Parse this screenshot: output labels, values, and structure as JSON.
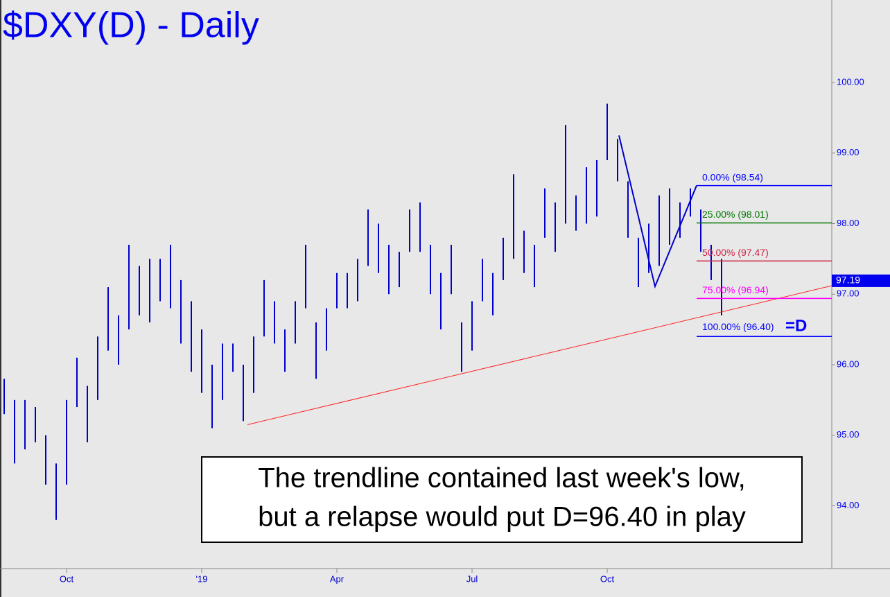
{
  "chart_data": {
    "type": "ohlc",
    "title": "$DXY(D) - Daily",
    "categories": [
      null,
      null,
      null,
      null,
      null,
      null,
      "Oct",
      null,
      null,
      null,
      null,
      null,
      null,
      null,
      null,
      null,
      null,
      null,
      null,
      "'19",
      null,
      null,
      null,
      null,
      null,
      null,
      null,
      null,
      null,
      null,
      null,
      null,
      "Apr",
      null,
      null,
      null,
      null,
      null,
      null,
      null,
      null,
      null,
      null,
      null,
      null,
      "Jul",
      null,
      null,
      null,
      null,
      null,
      null,
      null,
      null,
      null,
      null,
      null,
      null,
      "Oct",
      null,
      null,
      null,
      null,
      null,
      null,
      null,
      null,
      null,
      null,
      null
    ],
    "high": [
      95.8,
      95.5,
      95.5,
      95.4,
      95.0,
      94.6,
      95.5,
      96.1,
      95.7,
      96.4,
      97.1,
      96.7,
      97.7,
      97.4,
      97.5,
      97.5,
      97.7,
      97.2,
      96.9,
      96.5,
      96.0,
      96.3,
      96.3,
      96.0,
      96.4,
      97.2,
      96.9,
      96.5,
      96.9,
      97.7,
      96.6,
      96.8,
      97.3,
      97.3,
      97.5,
      98.2,
      98.0,
      97.7,
      97.6,
      98.2,
      98.3,
      97.7,
      97.3,
      97.7,
      96.6,
      96.9,
      97.5,
      97.3,
      97.8,
      98.7,
      97.9,
      97.7,
      98.5,
      98.3,
      99.4,
      98.4,
      98.8,
      98.9,
      99.7,
      99.2,
      98.6,
      97.8,
      98.0,
      98.4,
      98.5,
      98.3,
      98.5,
      98.2,
      97.7,
      97.5
    ],
    "low": [
      95.3,
      94.6,
      94.8,
      94.9,
      94.3,
      93.8,
      94.3,
      95.4,
      94.9,
      95.5,
      96.2,
      96.0,
      96.5,
      96.7,
      96.6,
      96.9,
      96.8,
      96.3,
      95.9,
      95.6,
      95.1,
      95.5,
      95.9,
      95.2,
      95.6,
      96.4,
      96.3,
      95.9,
      96.3,
      96.8,
      95.8,
      96.2,
      96.8,
      96.8,
      96.9,
      97.4,
      97.3,
      97.0,
      97.1,
      97.6,
      97.6,
      97.0,
      96.5,
      97.0,
      95.9,
      96.2,
      96.9,
      96.7,
      97.2,
      97.5,
      97.3,
      97.1,
      97.8,
      97.6,
      98.0,
      97.9,
      98.0,
      98.1,
      98.9,
      98.6,
      97.8,
      97.1,
      97.3,
      97.4,
      97.7,
      97.8,
      98.1,
      97.6,
      97.2,
      96.7
    ],
    "color": "#0000cc",
    "ylim": [
      93.11,
      101.17
    ],
    "yticks": [
      {
        "value": 94,
        "label": "94.00"
      },
      {
        "value": 95,
        "label": "95.00"
      },
      {
        "value": 96,
        "label": "96.00"
      },
      {
        "value": 97,
        "label": "97.00"
      },
      {
        "value": 98,
        "label": "98.00"
      },
      {
        "value": 99,
        "label": "99.00"
      },
      {
        "value": 100,
        "label": "100.00"
      }
    ],
    "last_price": 97.19,
    "trendline": [
      95.15,
      97.12
    ],
    "pattern": [
      99.25,
      97.11,
      98.54
    ],
    "fib_levels": [
      {
        "label": "0.00% (98.54)",
        "value": 98.54,
        "color": "#0000ff"
      },
      {
        "label": "25.00% (98.01)",
        "value": 98.01,
        "color": "#007700"
      },
      {
        "label": "50.00% (97.47)",
        "value": 97.47,
        "color": "#cc2244"
      },
      {
        "label": "75.00% (96.94)",
        "value": 96.94,
        "color": "#ff00ff"
      },
      {
        "label": "100.00% (96.40)",
        "value": 96.4,
        "color": "#0000ff"
      }
    ],
    "target_label": "=D",
    "annotation": [
      "The trendline contained last week's low,",
      "but a relapse would put D=96.40 in play"
    ]
  }
}
